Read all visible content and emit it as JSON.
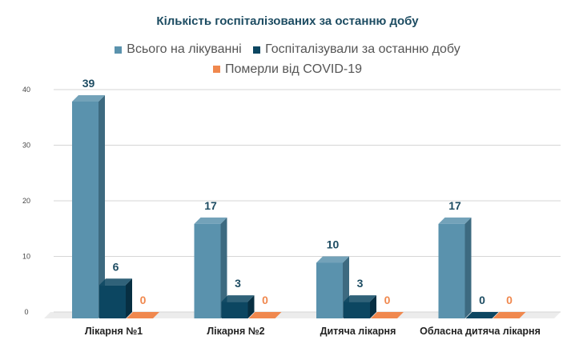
{
  "chart_data": {
    "type": "bar",
    "title": "Кількість госпіталізованих за останню добу",
    "categories": [
      "Лікарня №1",
      "Лікарня №2",
      "Дитяча лікарня",
      "Обласна дитяча лікарня"
    ],
    "series": [
      {
        "name": "Всього на лікуванні",
        "values": [
          39,
          17,
          10,
          17
        ],
        "color": "#5a92ad",
        "side": "#3d6a80",
        "label_color": "#1d4c62"
      },
      {
        "name": "Госпіталізували за останню добу",
        "values": [
          6,
          3,
          3,
          0
        ],
        "color": "#0c4661",
        "side": "#072f42",
        "label_color": "#1d4c62"
      },
      {
        "name": "Померли від COVID-19",
        "values": [
          0,
          0,
          0,
          0
        ],
        "color": "#f0884e",
        "side": "#c96a35",
        "label_color": "#f0884e"
      }
    ],
    "yticks": [
      0,
      10,
      20,
      30,
      40
    ],
    "ylim": [
      0,
      40
    ],
    "xlabel": "",
    "ylabel": "",
    "grid": true,
    "legend_position": "top-center",
    "style": "3d-column"
  }
}
